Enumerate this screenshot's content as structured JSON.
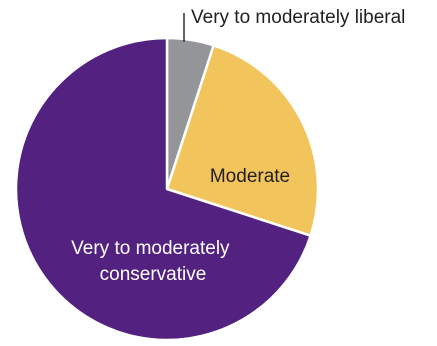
{
  "chart_data": {
    "type": "pie",
    "title": "",
    "start": "12 o'clock",
    "direction": "clockwise",
    "slices": [
      {
        "label": "Very to moderately liberal",
        "value": 5,
        "color": "#939598"
      },
      {
        "label": "Moderate",
        "value": 25,
        "color": "#f2c45c"
      },
      {
        "label": "Very to moderately conservative",
        "value": 70,
        "color": "#532281"
      }
    ]
  }
}
